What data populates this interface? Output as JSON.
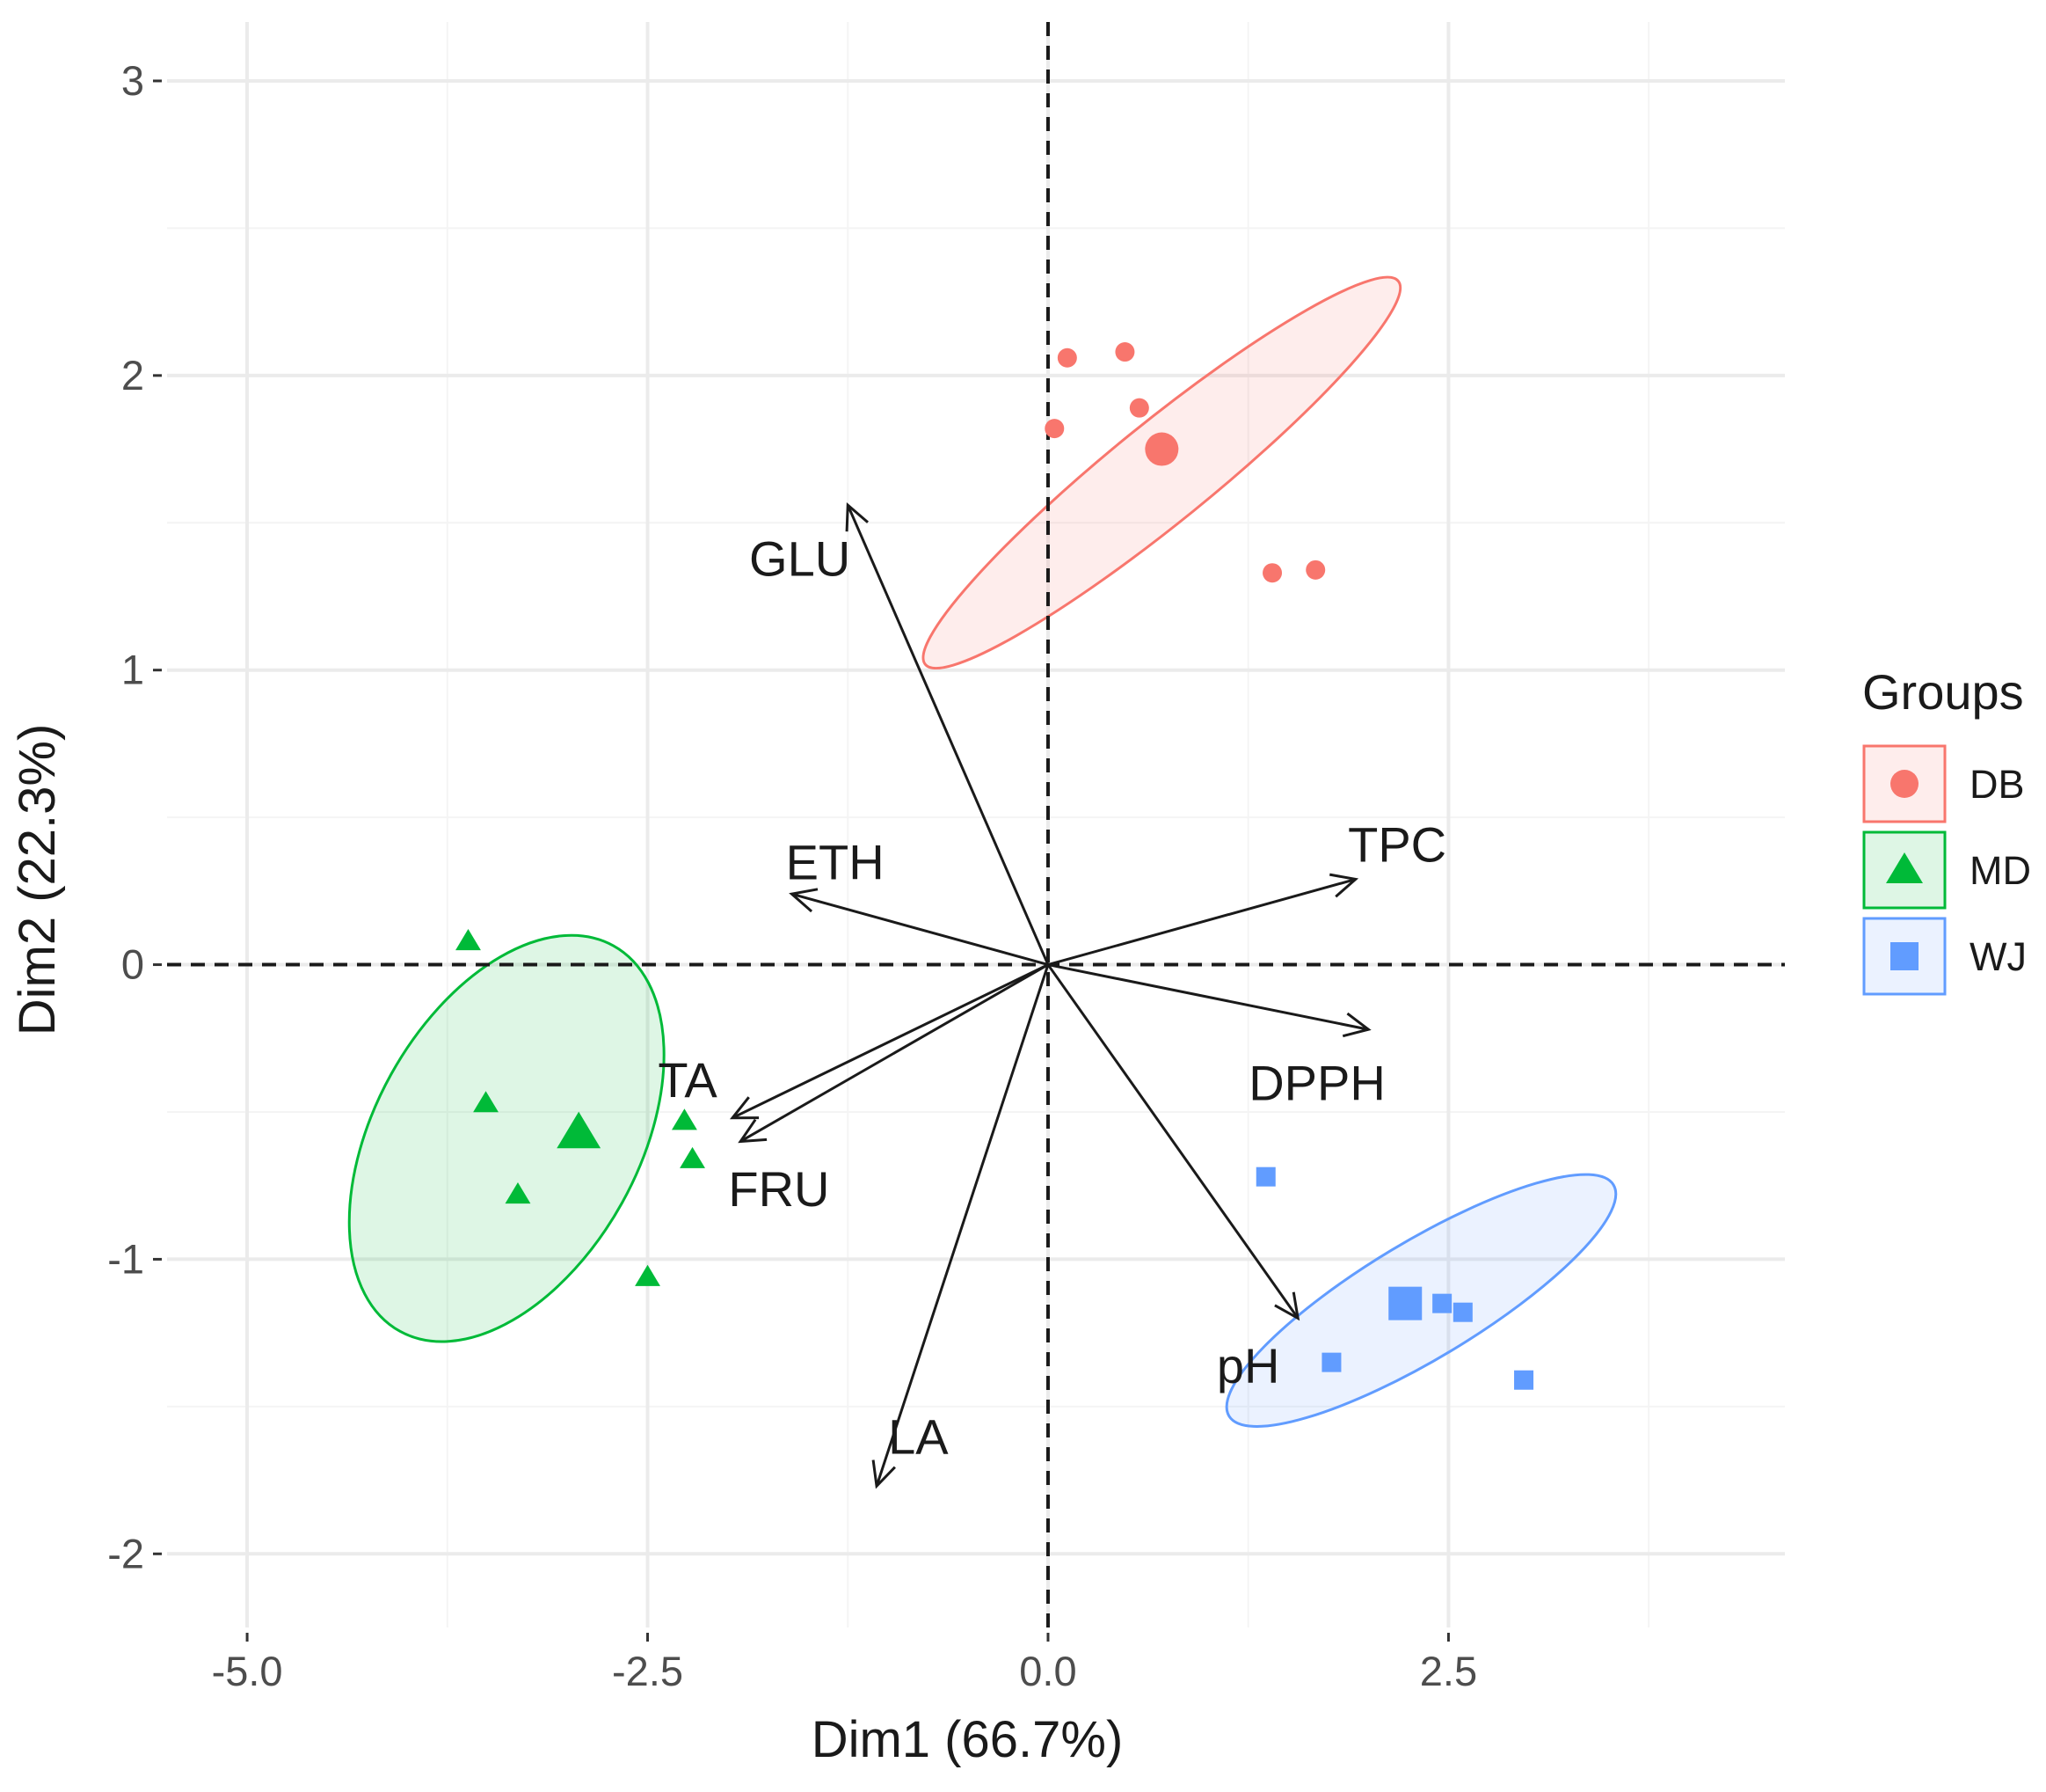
{
  "chart_data": {
    "type": "scatter",
    "subtype": "PCA biplot",
    "xlabel": "Dim1 (66.7%)",
    "ylabel": "Dim2 (22.3%)",
    "xlim": [
      -5.5,
      4.6
    ],
    "ylim": [
      -2.25,
      3.2
    ],
    "x_ticks": [
      -5.0,
      -2.5,
      0.0,
      2.5
    ],
    "x_tick_labels": [
      "-5.0",
      "-2.5",
      "0.0",
      "2.5"
    ],
    "y_ticks": [
      -2,
      -1,
      0,
      1,
      2,
      3
    ],
    "y_tick_labels": [
      "-2",
      "-1",
      "0",
      "1",
      "2",
      "3"
    ],
    "grid": true,
    "legend": {
      "title": "Groups",
      "position": "right"
    },
    "groups": [
      {
        "name": "DB",
        "color": "#F8766D",
        "shape": "circle",
        "points": [
          [
            0.12,
            2.06
          ],
          [
            0.48,
            2.08
          ],
          [
            0.57,
            1.89
          ],
          [
            0.04,
            1.82
          ],
          [
            1.4,
            1.33
          ],
          [
            1.67,
            1.34
          ]
        ],
        "centroid": [
          0.71,
          1.75
        ],
        "ellipse": {
          "center": [
            0.71,
            1.67
          ],
          "radii": [
            3.8,
            0.62
          ],
          "angle_deg": -39
        }
      },
      {
        "name": "MD",
        "color": "#00BA38",
        "shape": "triangle",
        "points": [
          [
            -3.62,
            0.08
          ],
          [
            -3.51,
            -0.47
          ],
          [
            -3.31,
            -0.78
          ],
          [
            -2.27,
            -0.53
          ],
          [
            -2.22,
            -0.66
          ],
          [
            -2.5,
            -1.06
          ]
        ],
        "centroid": [
          -2.93,
          -0.57
        ],
        "ellipse": {
          "center": [
            -3.38,
            -0.59
          ],
          "radii": [
            2.75,
            1.65
          ],
          "angle_deg": -61
        }
      },
      {
        "name": "WJ",
        "color": "#619CFF",
        "shape": "square",
        "points": [
          [
            1.36,
            -0.72
          ],
          [
            1.77,
            -1.35
          ],
          [
            2.46,
            -1.15
          ],
          [
            2.59,
            -1.18
          ],
          [
            2.97,
            -1.41
          ]
        ],
        "centroid": [
          2.23,
          -1.15
        ],
        "ellipse": {
          "center": [
            2.33,
            -1.14
          ],
          "radii": [
            2.8,
            0.73
          ],
          "angle_deg": -31
        }
      }
    ],
    "variables": [
      {
        "name": "GLU",
        "x": -1.25,
        "y": 1.56,
        "label_x": -1.55,
        "label_y": 1.38
      },
      {
        "name": "ETH",
        "x": -1.6,
        "y": 0.24,
        "label_x": -1.33,
        "label_y": 0.35
      },
      {
        "name": "TPC",
        "x": 1.92,
        "y": 0.29,
        "label_x": 2.18,
        "label_y": 0.41
      },
      {
        "name": "DPPH",
        "x": 2.0,
        "y": -0.22,
        "label_x": 1.68,
        "label_y": -0.4
      },
      {
        "name": "TA",
        "x": -1.97,
        "y": -0.52,
        "label_x": -2.25,
        "label_y": -0.39
      },
      {
        "name": "FRU",
        "x": -1.92,
        "y": -0.6,
        "label_x": -1.68,
        "label_y": -0.76
      },
      {
        "name": "pH",
        "x": 1.56,
        "y": -1.2,
        "label_x": 1.25,
        "label_y": -1.36
      },
      {
        "name": "LA",
        "x": -1.07,
        "y": -1.77,
        "label_x": -0.81,
        "label_y": -1.6
      }
    ]
  }
}
